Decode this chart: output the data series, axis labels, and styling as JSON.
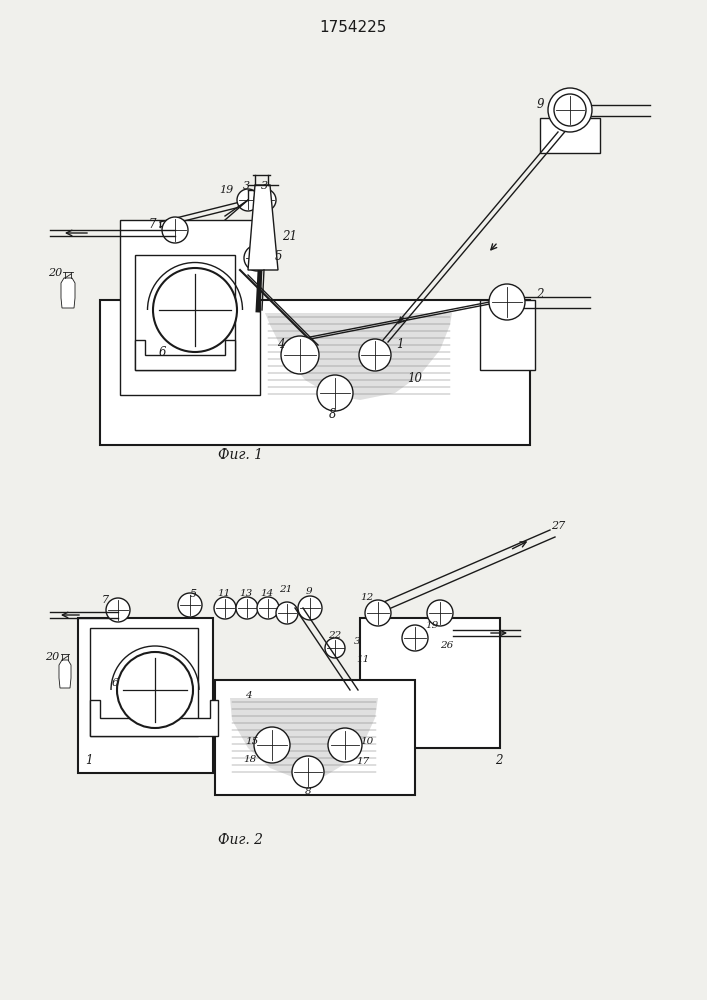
{
  "title": "1754225",
  "fig1_caption": "Фиг. 1",
  "fig2_caption": "Фиг. 2",
  "bg_color": "#f0f0ec",
  "line_color": "#1a1a1a",
  "fig_width": 7.07,
  "fig_height": 10.0,
  "dpi": 100
}
